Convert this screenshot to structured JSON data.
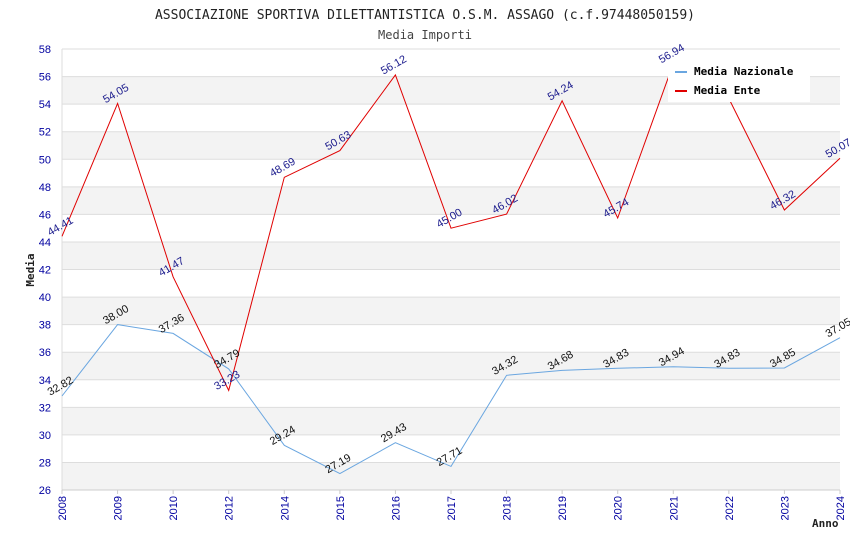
{
  "chart_data": {
    "type": "line",
    "title": "ASSOCIAZIONE SPORTIVA DILETTANTISTICA O.S.M. ASSAGO (c.f.97448050159)",
    "subtitle": "Media Importi",
    "xlabel": "Anno",
    "ylabel": "Media",
    "ylim": [
      26,
      58
    ],
    "y_ticks": [
      "26",
      "28",
      "30",
      "32",
      "34",
      "36",
      "38",
      "40",
      "42",
      "44",
      "46",
      "48",
      "50",
      "52",
      "54",
      "56",
      "58"
    ],
    "x": [
      "2008",
      "2009",
      "2010",
      "2012",
      "2014",
      "2015",
      "2016",
      "2017",
      "2018",
      "2019",
      "2020",
      "2021",
      "2022",
      "2023",
      "2024"
    ],
    "grid": true,
    "legend_position": "top-right",
    "series": [
      {
        "name": "Media Nazionale",
        "color": "#6aa6e0",
        "values": [
          32.82,
          38.0,
          37.36,
          34.79,
          29.24,
          27.19,
          29.43,
          27.71,
          34.32,
          34.68,
          34.83,
          34.94,
          34.83,
          34.85,
          37.05
        ],
        "labels": [
          "32.82",
          "38.00",
          "37.36",
          "34.79",
          "29.24",
          "27.19",
          "29.43",
          "27.71",
          "34.32",
          "34.68",
          "34.83",
          "34.94",
          "34.83",
          "34.85",
          "37.05"
        ]
      },
      {
        "name": "Media Ente",
        "color": "#e00000",
        "values": [
          44.41,
          54.05,
          41.47,
          33.23,
          48.69,
          50.63,
          56.12,
          45.0,
          46.02,
          54.24,
          45.74,
          56.94,
          54.4,
          46.32,
          50.07
        ],
        "labels": [
          "44.41",
          "54.05",
          "41.47",
          "33.23",
          "48.69",
          "50.63",
          "56.12",
          "45.00",
          "46.02",
          "54.24",
          "45.74",
          "56.94",
          "",
          "46.32",
          "50.07"
        ]
      }
    ]
  }
}
